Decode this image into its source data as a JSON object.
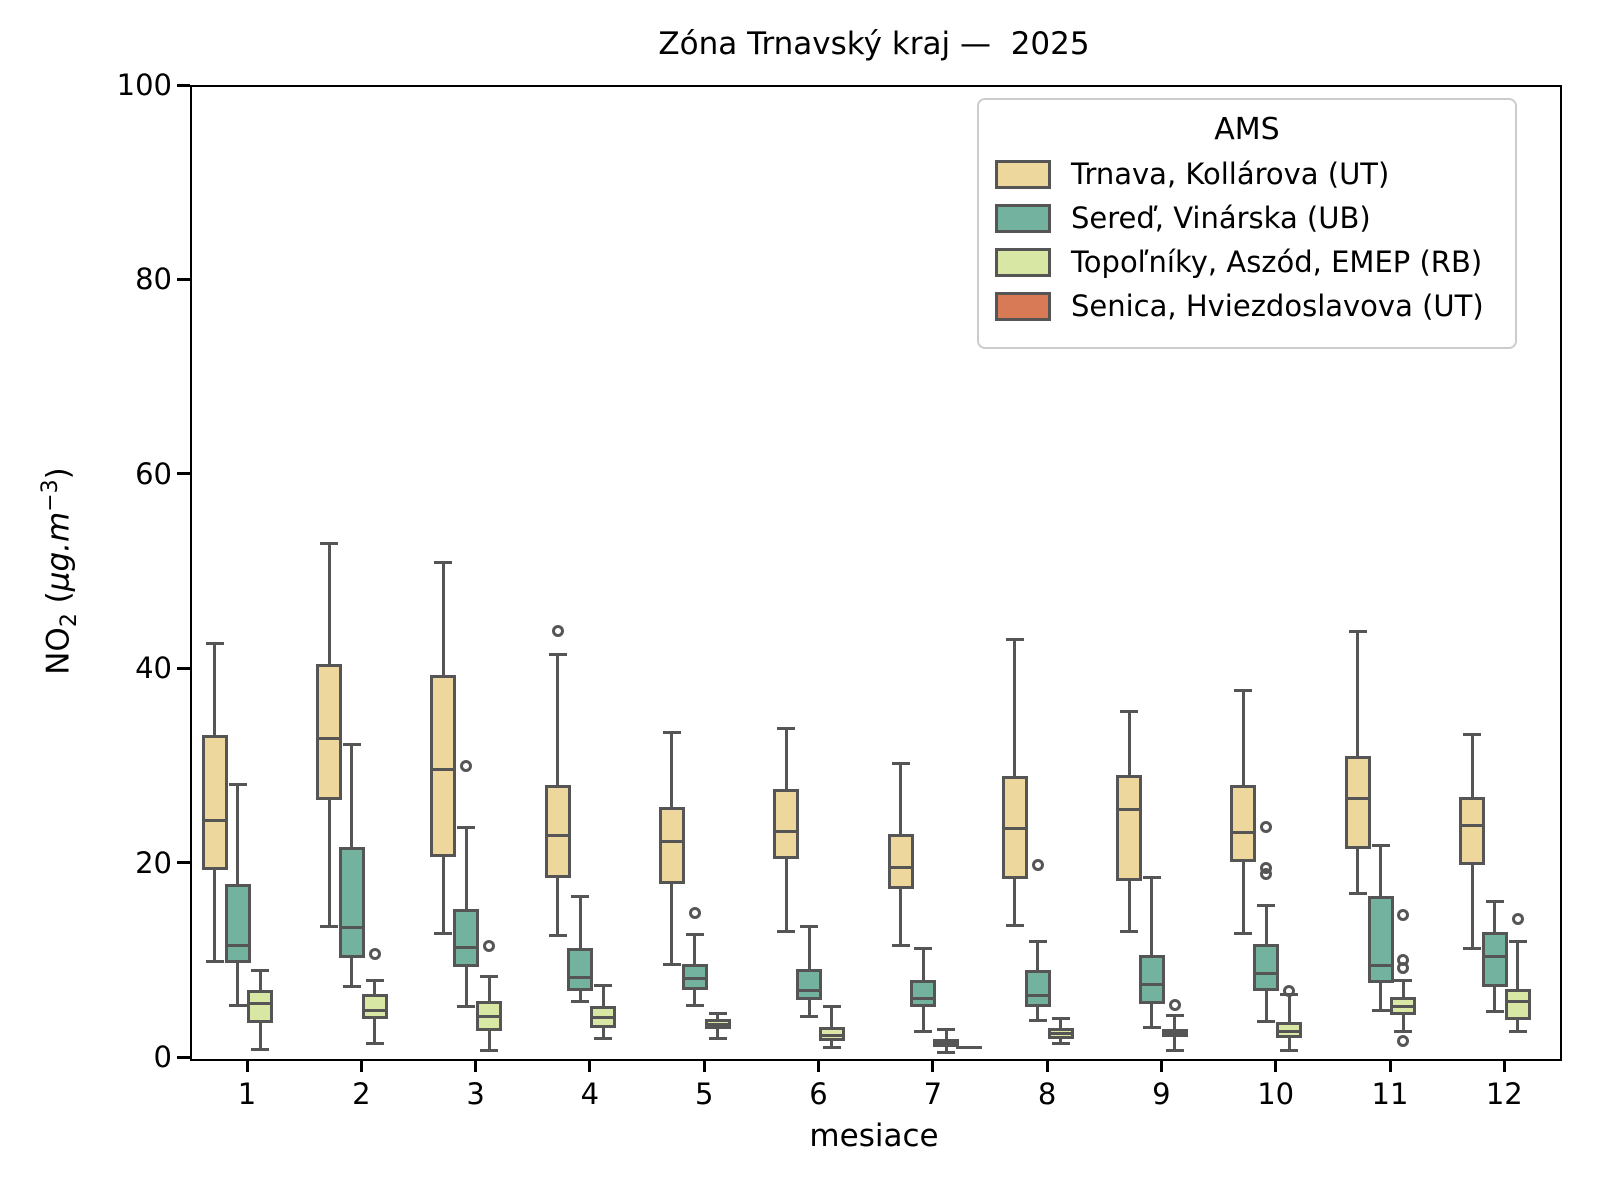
{
  "title": "Zóna Trnavský kraj —  2025",
  "axes": {
    "ylabel": {
      "base": "NO",
      "sub": "2",
      "open": "  (",
      "unit": "µg.m",
      "sup": "−3",
      "close": ")"
    },
    "xlabel": "mesiace",
    "yticks": [
      0,
      20,
      40,
      60,
      80,
      100
    ],
    "xticks": [
      "1",
      "2",
      "3",
      "4",
      "5",
      "6",
      "7",
      "8",
      "9",
      "10",
      "11",
      "12"
    ],
    "ylim": [
      0,
      100
    ]
  },
  "legend": {
    "title": "AMS",
    "entries": [
      {
        "label": "Trnava, Kollárova (UT)",
        "color": "#edd79c"
      },
      {
        "label": "Sereď, Vinárska (UB)",
        "color": "#73b29e"
      },
      {
        "label": "Topoľníky, Aszód, EMEP (RB)",
        "color": "#d9e7a5"
      },
      {
        "label": "Senica, Hviezdoslavova (UT)",
        "color": "#d97a56"
      }
    ]
  },
  "chart_data": {
    "type": "boxplot",
    "title": "Zóna Trnavský kraj — 2025",
    "xlabel": "mesiace",
    "ylabel": "NO2 (µg.m−3)",
    "ylim": [
      0,
      100
    ],
    "grid": false,
    "legend_position": "upper right",
    "categories": [
      1,
      2,
      3,
      4,
      5,
      6,
      7,
      8,
      9,
      10,
      11,
      12
    ],
    "edge_color": "#555555",
    "series": [
      {
        "name": "Trnava, Kollárova (UT)",
        "color": "#edd79c",
        "boxes": [
          {
            "lo": 10.0,
            "q1": 19.4,
            "med": 24.5,
            "q3": 33.3,
            "hi": 42.7,
            "fliers": []
          },
          {
            "lo": 13.6,
            "q1": 26.6,
            "med": 33.0,
            "q3": 40.6,
            "hi": 53.0,
            "fliers": []
          },
          {
            "lo": 12.9,
            "q1": 20.8,
            "med": 29.8,
            "q3": 39.5,
            "hi": 51.1,
            "fliers": []
          },
          {
            "lo": 12.7,
            "q1": 18.6,
            "med": 23.0,
            "q3": 28.2,
            "hi": 41.6,
            "fliers": [
              44.0
            ]
          },
          {
            "lo": 9.7,
            "q1": 18.0,
            "med": 22.4,
            "q3": 25.9,
            "hi": 33.6,
            "fliers": []
          },
          {
            "lo": 13.1,
            "q1": 20.6,
            "med": 23.4,
            "q3": 27.8,
            "hi": 34.0,
            "fliers": []
          },
          {
            "lo": 11.7,
            "q1": 17.5,
            "med": 19.7,
            "q3": 23.1,
            "hi": 30.4,
            "fliers": []
          },
          {
            "lo": 13.7,
            "q1": 18.5,
            "med": 23.7,
            "q3": 29.1,
            "hi": 43.2,
            "fliers": []
          },
          {
            "lo": 13.1,
            "q1": 18.3,
            "med": 25.7,
            "q3": 29.2,
            "hi": 35.7,
            "fliers": []
          },
          {
            "lo": 12.9,
            "q1": 20.3,
            "med": 23.3,
            "q3": 28.2,
            "hi": 37.9,
            "fliers": []
          },
          {
            "lo": 17.0,
            "q1": 21.6,
            "med": 26.8,
            "q3": 31.2,
            "hi": 44.0,
            "fliers": []
          },
          {
            "lo": 11.4,
            "q1": 20.0,
            "med": 24.0,
            "q3": 27.0,
            "hi": 33.4,
            "fliers": []
          }
        ]
      },
      {
        "name": "Sereď, Vinárska (UB)",
        "color": "#73b29e",
        "boxes": [
          {
            "lo": 5.5,
            "q1": 9.9,
            "med": 11.7,
            "q3": 18.0,
            "hi": 28.2,
            "fliers": []
          },
          {
            "lo": 7.5,
            "q1": 10.4,
            "med": 13.5,
            "q3": 21.8,
            "hi": 32.4,
            "fliers": []
          },
          {
            "lo": 5.4,
            "q1": 9.5,
            "med": 11.5,
            "q3": 15.4,
            "hi": 23.8,
            "fliers": [
              30.1
            ]
          },
          {
            "lo": 5.9,
            "q1": 7.0,
            "med": 8.4,
            "q3": 11.4,
            "hi": 16.7,
            "fliers": []
          },
          {
            "lo": 5.5,
            "q1": 7.1,
            "med": 8.3,
            "q3": 9.8,
            "hi": 12.8,
            "fliers": [
              15.0
            ]
          },
          {
            "lo": 4.4,
            "q1": 6.1,
            "med": 7.0,
            "q3": 9.3,
            "hi": 13.6,
            "fliers": []
          },
          {
            "lo": 2.8,
            "q1": 5.3,
            "med": 6.2,
            "q3": 8.1,
            "hi": 11.4,
            "fliers": []
          },
          {
            "lo": 4.0,
            "q1": 5.3,
            "med": 6.5,
            "q3": 9.2,
            "hi": 12.1,
            "fliers": [
              20.0
            ]
          },
          {
            "lo": 3.2,
            "q1": 5.7,
            "med": 7.7,
            "q3": 10.7,
            "hi": 18.7,
            "fliers": []
          },
          {
            "lo": 3.9,
            "q1": 7.0,
            "med": 8.8,
            "q3": 11.8,
            "hi": 15.8,
            "fliers": [
              23.9,
              19.7,
              19.0
            ]
          },
          {
            "lo": 5.0,
            "q1": 7.8,
            "med": 9.6,
            "q3": 16.8,
            "hi": 22.0,
            "fliers": []
          },
          {
            "lo": 4.9,
            "q1": 7.4,
            "med": 10.5,
            "q3": 13.1,
            "hi": 16.2,
            "fliers": []
          }
        ]
      },
      {
        "name": "Topoľníky, Aszód, EMEP (RB)",
        "color": "#d9e7a5",
        "boxes": [
          {
            "lo": 1.0,
            "q1": 3.7,
            "med": 5.7,
            "q3": 7.1,
            "hi": 9.1,
            "fliers": []
          },
          {
            "lo": 1.6,
            "q1": 4.1,
            "med": 5.0,
            "q3": 6.7,
            "hi": 8.1,
            "fliers": [
              10.8
            ]
          },
          {
            "lo": 0.9,
            "q1": 2.9,
            "med": 4.4,
            "q3": 6.0,
            "hi": 8.5,
            "fliers": [
              11.6
            ]
          },
          {
            "lo": 2.1,
            "q1": 3.2,
            "med": 4.3,
            "q3": 5.5,
            "hi": 7.6,
            "fliers": []
          },
          {
            "lo": 2.1,
            "q1": 3.1,
            "med": 3.5,
            "q3": 4.1,
            "hi": 4.7,
            "fliers": []
          },
          {
            "lo": 1.2,
            "q1": 1.9,
            "med": 2.4,
            "q3": 3.3,
            "hi": 5.4,
            "fliers": []
          },
          {
            "lo": 0.7,
            "q1": 1.2,
            "med": 1.7,
            "q3": 2.1,
            "hi": 3.0,
            "fliers": []
          },
          {
            "lo": 1.6,
            "q1": 2.1,
            "med": 2.6,
            "q3": 3.2,
            "hi": 4.2,
            "fliers": []
          },
          {
            "lo": 0.9,
            "q1": 2.3,
            "med": 2.7,
            "q3": 3.1,
            "hi": 4.5,
            "fliers": [
              5.6
            ]
          },
          {
            "lo": 0.9,
            "q1": 2.2,
            "med": 2.8,
            "q3": 3.8,
            "hi": 6.6,
            "fliers": [
              7.0
            ]
          },
          {
            "lo": 2.8,
            "q1": 4.5,
            "med": 5.4,
            "q3": 6.4,
            "hi": 8.1,
            "fliers": [
              14.8,
              10.2,
              9.4,
              1.9
            ]
          },
          {
            "lo": 2.8,
            "q1": 4.0,
            "med": 5.9,
            "q3": 7.2,
            "hi": 12.1,
            "fliers": [
              14.4
            ]
          }
        ]
      },
      {
        "name": "Senica, Hviezdoslavova (UT)",
        "color": "#d97a56",
        "boxes": [
          null,
          null,
          null,
          null,
          null,
          null,
          {
            "lo": 1.2,
            "q1": 1.2,
            "med": 1.2,
            "q3": 1.2,
            "hi": 1.2,
            "fliers": []
          },
          null,
          null,
          null,
          null,
          null
        ]
      }
    ]
  }
}
